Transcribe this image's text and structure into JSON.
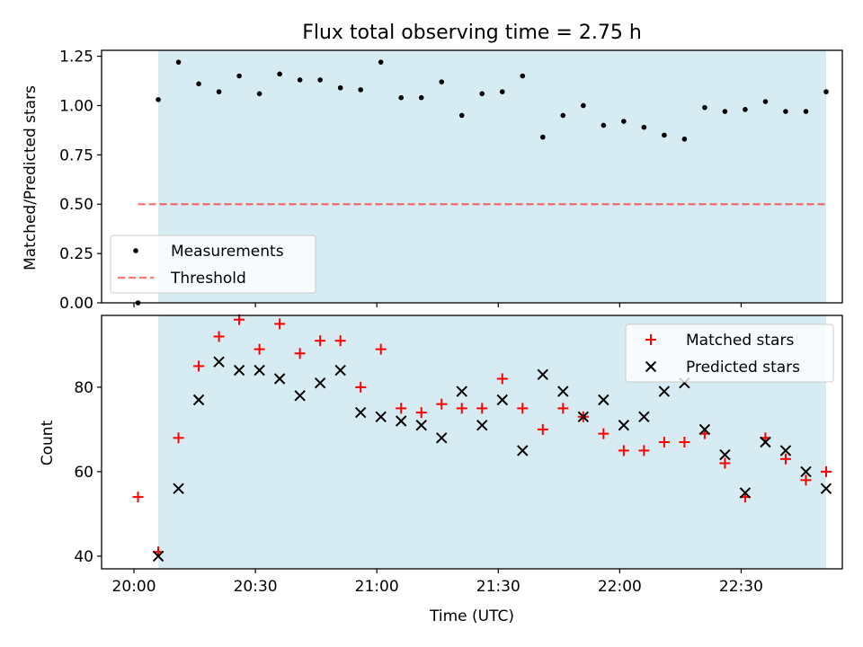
{
  "chart_data": [
    {
      "type": "scatter",
      "title": "Flux total observing time = 2.75 h",
      "xlabel": "",
      "ylabel": "Matched/Predicted stars",
      "ylim": [
        0.0,
        1.28
      ],
      "yticks": [
        "0.00",
        "0.25",
        "0.50",
        "0.75",
        "1.00",
        "1.25"
      ],
      "ytick_values": [
        0.0,
        0.25,
        0.5,
        0.75,
        1.0,
        1.25
      ],
      "xtick_labels_visible": false,
      "legend_position": "lower-left",
      "shaded_region": {
        "start": "20:06",
        "end": "22:51",
        "color": "#add8e6"
      },
      "series": [
        {
          "name": "Measurements",
          "marker": "dot",
          "color": "#000000",
          "x": [
            "20:01",
            "20:06",
            "20:11",
            "20:16",
            "20:21",
            "20:26",
            "20:31",
            "20:36",
            "20:41",
            "20:46",
            "20:51",
            "20:56",
            "21:01",
            "21:06",
            "21:11",
            "21:16",
            "21:21",
            "21:26",
            "21:31",
            "21:36",
            "21:41",
            "21:46",
            "21:51",
            "21:56",
            "22:01",
            "22:06",
            "22:11",
            "22:16",
            "22:21",
            "22:26",
            "22:31",
            "22:36",
            "22:41",
            "22:46",
            "22:51"
          ],
          "y": [
            0.0,
            1.03,
            1.22,
            1.11,
            1.07,
            1.15,
            1.06,
            1.16,
            1.13,
            1.13,
            1.09,
            1.08,
            1.22,
            1.04,
            1.04,
            1.12,
            0.95,
            1.06,
            1.07,
            1.15,
            0.84,
            0.95,
            1.0,
            0.9,
            0.92,
            0.89,
            0.85,
            0.83,
            0.99,
            0.97,
            0.98,
            1.02,
            0.97,
            0.97,
            1.07
          ]
        },
        {
          "name": "Threshold",
          "marker": "dashed-line",
          "color": "#ff0000",
          "x": [
            "20:01",
            "22:51"
          ],
          "y": [
            0.5,
            0.5
          ]
        }
      ]
    },
    {
      "type": "scatter",
      "title": "",
      "xlabel": "Time (UTC)",
      "ylabel": "Count",
      "ylim": [
        37,
        97
      ],
      "yticks": [
        "40",
        "60",
        "80"
      ],
      "ytick_values": [
        40,
        60,
        80
      ],
      "xticks": [
        "20:00",
        "20:30",
        "21:00",
        "21:30",
        "22:00",
        "22:30"
      ],
      "xlim": [
        "19:52",
        "22:55"
      ],
      "legend_position": "upper-right",
      "shaded_region": {
        "start": "20:06",
        "end": "22:51",
        "color": "#add8e6"
      },
      "series": [
        {
          "name": "Matched stars",
          "marker": "plus",
          "color": "#ff0000",
          "x": [
            "20:01",
            "20:06",
            "20:11",
            "20:16",
            "20:21",
            "20:26",
            "20:31",
            "20:36",
            "20:41",
            "20:46",
            "20:51",
            "20:56",
            "21:01",
            "21:06",
            "21:11",
            "21:16",
            "21:21",
            "21:26",
            "21:31",
            "21:36",
            "21:41",
            "21:46",
            "21:51",
            "21:56",
            "22:01",
            "22:06",
            "22:11",
            "22:16",
            "22:21",
            "22:26",
            "22:31",
            "22:36",
            "22:41",
            "22:46",
            "22:51"
          ],
          "y": [
            54,
            41,
            68,
            85,
            92,
            96,
            89,
            95,
            88,
            91,
            91,
            80,
            89,
            75,
            74,
            76,
            75,
            75,
            82,
            75,
            70,
            75,
            73,
            69,
            65,
            65,
            67,
            67,
            69,
            62,
            54,
            68,
            63,
            58,
            60
          ]
        },
        {
          "name": "Predicted stars",
          "marker": "x",
          "color": "#000000",
          "x": [
            "20:06",
            "20:11",
            "20:16",
            "20:21",
            "20:26",
            "20:31",
            "20:36",
            "20:41",
            "20:46",
            "20:51",
            "20:56",
            "21:01",
            "21:06",
            "21:11",
            "21:16",
            "21:21",
            "21:26",
            "21:31",
            "21:36",
            "21:41",
            "21:46",
            "21:51",
            "21:56",
            "22:01",
            "22:06",
            "22:11",
            "22:16",
            "22:21",
            "22:26",
            "22:31",
            "22:36",
            "22:41",
            "22:46",
            "22:51"
          ],
          "y": [
            40,
            56,
            77,
            86,
            84,
            84,
            82,
            78,
            81,
            84,
            74,
            73,
            72,
            71,
            68,
            79,
            71,
            77,
            65,
            83,
            79,
            73,
            77,
            71,
            73,
            79,
            81,
            70,
            64,
            55,
            67,
            65,
            60,
            56
          ]
        }
      ]
    }
  ]
}
